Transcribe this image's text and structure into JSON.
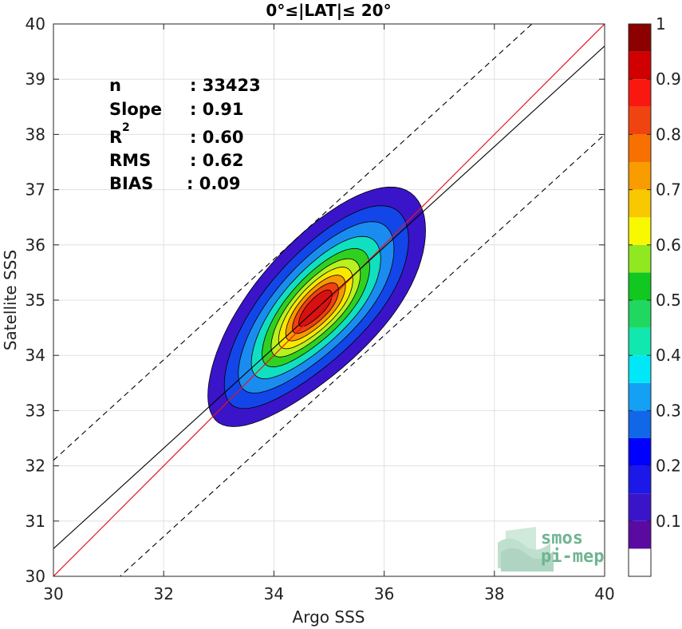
{
  "chart_data": {
    "type": "contour",
    "title": "0°≤|LAT|≤ 20°",
    "xlabel": "Argo SSS",
    "ylabel": "Satellite SSS",
    "xlim": [
      30,
      40
    ],
    "ylim": [
      30,
      40
    ],
    "xticks": [
      "30",
      "32",
      "34",
      "36",
      "38",
      "40"
    ],
    "yticks": [
      "30",
      "31",
      "32",
      "33",
      "34",
      "35",
      "36",
      "37",
      "38",
      "39",
      "40"
    ],
    "grid": true,
    "stats": [
      {
        "label": "n",
        "value": ": 33423"
      },
      {
        "label": "Slope",
        "value": ": 0.91"
      },
      {
        "label": "R",
        "sup": "2",
        "value": ": 0.60"
      },
      {
        "label": "RMS",
        "value": ": 0.62"
      },
      {
        "label": "BIAS",
        "value": ": 0.09"
      }
    ],
    "lines": {
      "one_to_one": {
        "color": "#e8141c",
        "slope": 1,
        "intercept": 0
      },
      "fit": {
        "color": "#000000",
        "x": [
          30,
          40
        ],
        "y": [
          30.5,
          39.6
        ]
      },
      "upper_bound": {
        "color": "#000000",
        "style": "dashed",
        "x": [
          30,
          40
        ],
        "y": [
          32.1,
          41.2
        ]
      },
      "lower_bound": {
        "color": "#000000",
        "style": "dashed",
        "x": [
          30,
          40
        ],
        "y": [
          28.9,
          38.0
        ]
      }
    },
    "density": {
      "center": [
        34.75,
        34.85
      ],
      "direction": [
        1,
        1.05
      ],
      "levels": [
        {
          "level": 0.05,
          "color": "#3a14c8",
          "semi_major": 2.7,
          "semi_minor": 1.13
        },
        {
          "level": 0.15,
          "color": "#1346e8",
          "semi_major": 2.3,
          "semi_minor": 0.92
        },
        {
          "level": 0.25,
          "color": "#1a8cf0",
          "semi_major": 1.95,
          "semi_minor": 0.76
        },
        {
          "level": 0.35,
          "color": "#10e0c0",
          "semi_major": 1.62,
          "semi_minor": 0.63
        },
        {
          "level": 0.45,
          "color": "#30d020",
          "semi_major": 1.35,
          "semi_minor": 0.52
        },
        {
          "level": 0.55,
          "color": "#b8f020",
          "semi_major": 1.12,
          "semi_minor": 0.43
        },
        {
          "level": 0.65,
          "color": "#f8e800",
          "semi_major": 0.93,
          "semi_minor": 0.36
        },
        {
          "level": 0.75,
          "color": "#f89800",
          "semi_major": 0.75,
          "semi_minor": 0.29
        },
        {
          "level": 0.85,
          "color": "#f04010",
          "semi_major": 0.58,
          "semi_minor": 0.22
        },
        {
          "level": 0.95,
          "color": "#d81010",
          "semi_major": 0.42,
          "semi_minor": 0.15
        }
      ]
    },
    "colorbar": {
      "range": [
        0,
        1
      ],
      "ticks": [
        "0.1",
        "0.2",
        "0.3",
        "0.4",
        "0.5",
        "0.6",
        "0.7",
        "0.8",
        "0.9",
        "1"
      ],
      "bands": [
        {
          "from": 0.0,
          "to": 0.05,
          "color": "#ffffff"
        },
        {
          "from": 0.05,
          "to": 0.1,
          "color": "#5a0aa0"
        },
        {
          "from": 0.1,
          "to": 0.15,
          "color": "#3a14c8"
        },
        {
          "from": 0.15,
          "to": 0.2,
          "color": "#1c18e8"
        },
        {
          "from": 0.2,
          "to": 0.25,
          "color": "#0000ff"
        },
        {
          "from": 0.25,
          "to": 0.3,
          "color": "#1068e8"
        },
        {
          "from": 0.3,
          "to": 0.35,
          "color": "#14a0f4"
        },
        {
          "from": 0.35,
          "to": 0.4,
          "color": "#00e8f8"
        },
        {
          "from": 0.4,
          "to": 0.45,
          "color": "#10e8b0"
        },
        {
          "from": 0.45,
          "to": 0.5,
          "color": "#20d860"
        },
        {
          "from": 0.5,
          "to": 0.55,
          "color": "#10c820"
        },
        {
          "from": 0.55,
          "to": 0.6,
          "color": "#90e820"
        },
        {
          "from": 0.6,
          "to": 0.65,
          "color": "#f8f800"
        },
        {
          "from": 0.65,
          "to": 0.7,
          "color": "#f8c800"
        },
        {
          "from": 0.7,
          "to": 0.75,
          "color": "#f89c00"
        },
        {
          "from": 0.75,
          "to": 0.8,
          "color": "#f87000"
        },
        {
          "from": 0.8,
          "to": 0.85,
          "color": "#f04410"
        },
        {
          "from": 0.85,
          "to": 0.9,
          "color": "#f81810"
        },
        {
          "from": 0.9,
          "to": 0.95,
          "color": "#d00000"
        },
        {
          "from": 0.95,
          "to": 1.0,
          "color": "#8c0000"
        }
      ]
    }
  },
  "logo": {
    "line1": "smos",
    "line2": "pi-mep",
    "color": "#6fb491"
  }
}
